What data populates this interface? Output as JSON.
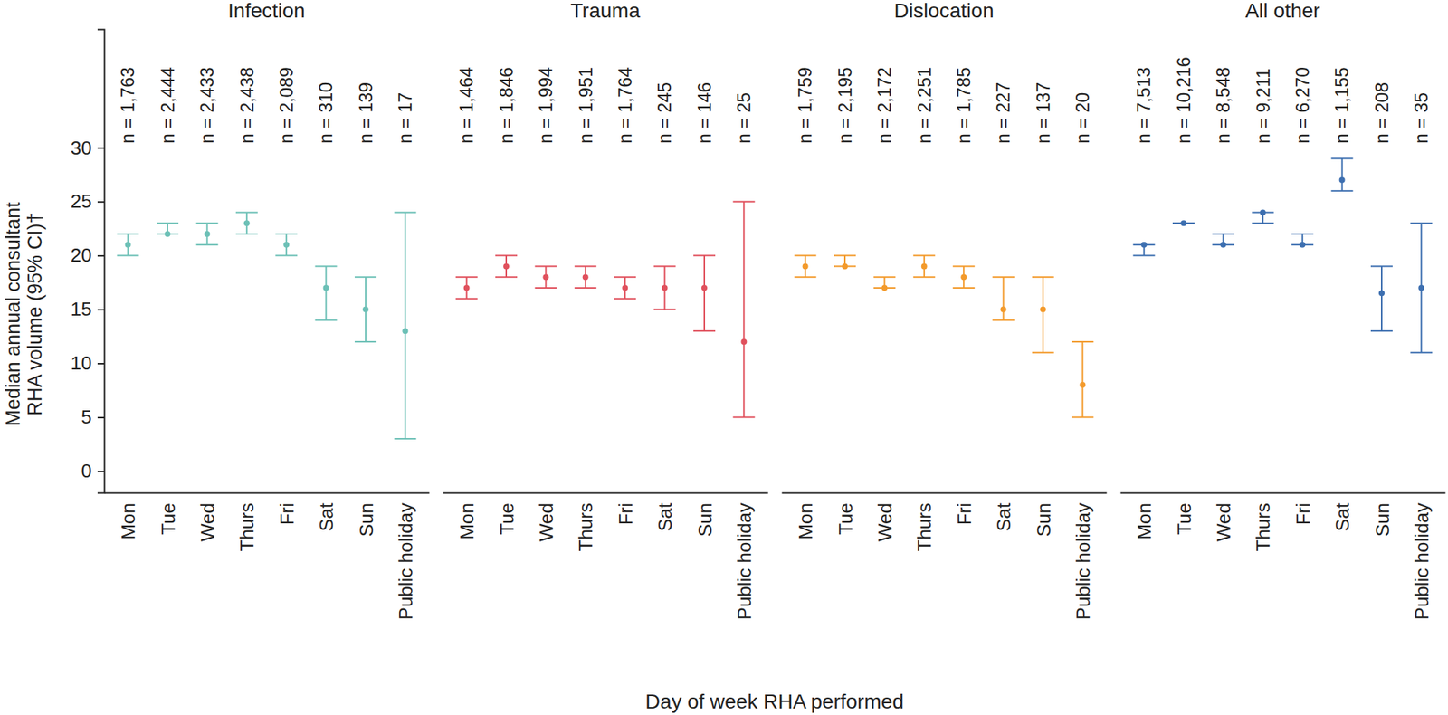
{
  "chart_data": {
    "type": "errorbar",
    "y_label": [
      "Median annual consultant",
      "RHA volume (95% CI)†"
    ],
    "x_label": "Day of week RHA performed",
    "ylim": [
      -2,
      41
    ],
    "yticks": [
      0,
      5,
      10,
      15,
      20,
      25,
      30
    ],
    "grid": false,
    "panels": [
      {
        "title": "Infection",
        "color": "#6cc0b6",
        "categories": [
          "Mon",
          "Tue",
          "Wed",
          "Thurs",
          "Fri",
          "Sat",
          "Sun",
          "Public holiday"
        ],
        "n_labels": [
          "n = 1,763",
          "n = 2,444",
          "n = 2,433",
          "n = 2,438",
          "n = 2,089",
          "n = 310",
          "n = 139",
          "n = 17"
        ],
        "values": [
          21,
          22,
          22,
          23,
          21,
          17,
          15,
          13
        ],
        "ci_lower": [
          20,
          22,
          21,
          22,
          20,
          14,
          12,
          3
        ],
        "ci_upper": [
          22,
          23,
          23,
          24,
          22,
          19,
          18,
          24
        ]
      },
      {
        "title": "Trauma",
        "color": "#e0505c",
        "categories": [
          "Mon",
          "Tue",
          "Wed",
          "Thurs",
          "Fri",
          "Sat",
          "Sun",
          "Public holiday"
        ],
        "n_labels": [
          "n = 1,464",
          "n = 1,846",
          "n = 1,994",
          "n = 1,951",
          "n = 1,764",
          "n = 245",
          "n = 146",
          "n = 25"
        ],
        "values": [
          17,
          19,
          18,
          18,
          17,
          17,
          17,
          12
        ],
        "ci_lower": [
          16,
          18,
          17,
          17,
          16,
          15,
          13,
          5
        ],
        "ci_upper": [
          18,
          20,
          19,
          19,
          18,
          19,
          20,
          25
        ]
      },
      {
        "title": "Dislocation",
        "color": "#f39a2b",
        "categories": [
          "Mon",
          "Tue",
          "Wed",
          "Thurs",
          "Fri",
          "Sat",
          "Sun",
          "Public holiday"
        ],
        "n_labels": [
          "n = 1,759",
          "n = 2,195",
          "n = 2,172",
          "n = 2,251",
          "n = 1,785",
          "n = 227",
          "n = 137",
          "n = 20"
        ],
        "values": [
          19,
          19,
          17,
          19,
          18,
          15,
          15,
          8
        ],
        "ci_lower": [
          18,
          19,
          17,
          18,
          17,
          14,
          11,
          5
        ],
        "ci_upper": [
          20,
          20,
          18,
          20,
          19,
          18,
          18,
          12
        ]
      },
      {
        "title": "All other",
        "color": "#3d6fb0",
        "categories": [
          "Mon",
          "Tue",
          "Wed",
          "Thurs",
          "Fri",
          "Sat",
          "Sun",
          "Public holiday"
        ],
        "n_labels": [
          "n = 7,513",
          "n = 10,216",
          "n = 8,548",
          "n = 9,211",
          "n = 6,270",
          "n = 1,155",
          "n = 208",
          "n = 35"
        ],
        "values": [
          21,
          23,
          21,
          24,
          21,
          27,
          16.5,
          17
        ],
        "ci_lower": [
          20,
          23,
          21,
          23,
          21,
          26,
          13,
          11
        ],
        "ci_upper": [
          21,
          23,
          22,
          24,
          22,
          29,
          19,
          23
        ]
      }
    ]
  }
}
